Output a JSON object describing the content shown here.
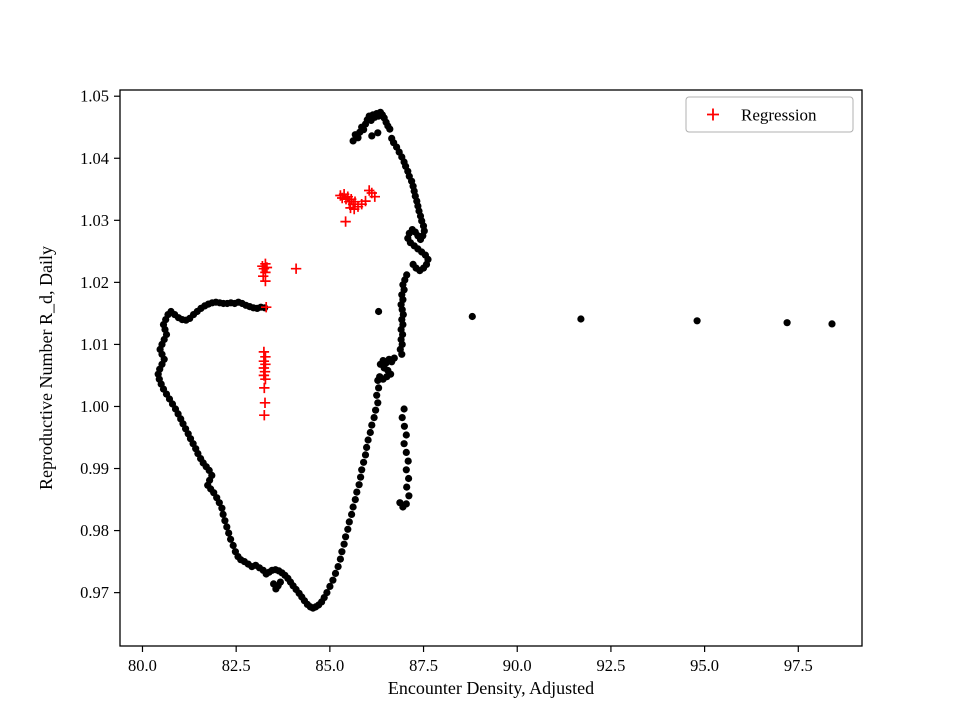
{
  "figure": {
    "background": "#ffffff",
    "accent_red": "#ff0000",
    "marker_black": "#000000"
  },
  "chart_data": {
    "type": "scatter",
    "title": "",
    "xlabel": "Encounter Density, Adjusted",
    "ylabel": "Reproductive Number R_d, Daily",
    "xlim": [
      79.4,
      99.2
    ],
    "ylim": [
      0.9614,
      1.051
    ],
    "grid": false,
    "x_ticks": [
      80.0,
      82.5,
      85.0,
      87.5,
      90.0,
      92.5,
      95.0,
      97.5
    ],
    "x_tick_labels": [
      "80.0",
      "82.5",
      "85.0",
      "87.5",
      "90.0",
      "92.5",
      "95.0",
      "97.5"
    ],
    "y_ticks": [
      0.97,
      0.98,
      0.99,
      1.0,
      1.01,
      1.02,
      1.03,
      1.04,
      1.05
    ],
    "y_tick_labels": [
      "0.97",
      "0.98",
      "0.99",
      "1.00",
      "1.01",
      "1.02",
      "1.03",
      "1.04",
      "1.05"
    ],
    "legend": {
      "position": "upper right",
      "entries": [
        "Regression"
      ]
    },
    "series": [
      {
        "marker": "circle",
        "color": "#000000",
        "points": [
          [
            85.62,
            1.0428
          ],
          [
            85.68,
            1.0438
          ],
          [
            85.75,
            1.0433
          ],
          [
            85.8,
            1.0442
          ],
          [
            85.85,
            1.045
          ],
          [
            85.9,
            1.0446
          ],
          [
            85.95,
            1.0455
          ],
          [
            86.0,
            1.0462
          ],
          [
            86.05,
            1.0468
          ],
          [
            86.1,
            1.0461
          ],
          [
            86.15,
            1.047
          ],
          [
            86.2,
            1.0466
          ],
          [
            86.25,
            1.0472
          ],
          [
            86.3,
            1.0468
          ],
          [
            86.35,
            1.0474
          ],
          [
            86.4,
            1.047
          ],
          [
            86.45,
            1.0465
          ],
          [
            86.5,
            1.0458
          ],
          [
            86.55,
            1.0452
          ],
          [
            86.6,
            1.0447
          ],
          [
            86.28,
            1.0441
          ],
          [
            86.12,
            1.0436
          ],
          [
            86.65,
            1.0432
          ],
          [
            86.7,
            1.0425
          ],
          [
            86.78,
            1.0418
          ],
          [
            86.85,
            1.041
          ],
          [
            86.92,
            1.0402
          ],
          [
            86.98,
            1.0394
          ],
          [
            87.02,
            1.0387
          ],
          [
            87.08,
            1.0379
          ],
          [
            87.12,
            1.0371
          ],
          [
            87.18,
            1.0363
          ],
          [
            87.22,
            1.0355
          ],
          [
            87.25,
            1.0347
          ],
          [
            87.28,
            1.0339
          ],
          [
            87.32,
            1.0331
          ],
          [
            87.35,
            1.0323
          ],
          [
            87.38,
            1.0315
          ],
          [
            87.42,
            1.0307
          ],
          [
            87.45,
            1.0299
          ],
          [
            87.5,
            1.0291
          ],
          [
            87.52,
            1.0283
          ],
          [
            87.48,
            1.0275
          ],
          [
            87.42,
            1.0269
          ],
          [
            87.35,
            1.0275
          ],
          [
            87.28,
            1.0281
          ],
          [
            87.2,
            1.0285
          ],
          [
            87.12,
            1.0279
          ],
          [
            87.08,
            1.0271
          ],
          [
            87.15,
            1.0264
          ],
          [
            87.25,
            1.0259
          ],
          [
            87.35,
            1.0254
          ],
          [
            87.45,
            1.0249
          ],
          [
            87.55,
            1.0244
          ],
          [
            87.62,
            1.0237
          ],
          [
            87.58,
            1.0229
          ],
          [
            87.5,
            1.0223
          ],
          [
            87.4,
            1.0219
          ],
          [
            87.3,
            1.0223
          ],
          [
            87.22,
            1.0229
          ],
          [
            87.05,
            1.0212
          ],
          [
            87.0,
            1.0204
          ],
          [
            86.95,
            1.0196
          ],
          [
            86.98,
            1.0188
          ],
          [
            86.92,
            1.018
          ],
          [
            86.95,
            1.0172
          ],
          [
            86.9,
            1.0164
          ],
          [
            86.93,
            1.0156
          ],
          [
            86.96,
            1.0148
          ],
          [
            86.92,
            1.014
          ],
          [
            86.95,
            1.0132
          ],
          [
            86.9,
            1.0124
          ],
          [
            86.94,
            1.0116
          ],
          [
            86.9,
            1.0108
          ],
          [
            86.93,
            1.01
          ],
          [
            86.88,
            1.0092
          ],
          [
            86.92,
            1.0084
          ],
          [
            86.72,
            1.0078
          ],
          [
            86.65,
            1.0072
          ],
          [
            86.58,
            1.0076
          ],
          [
            86.5,
            1.007
          ],
          [
            86.42,
            1.0074
          ],
          [
            86.35,
            1.0068
          ],
          [
            86.45,
            1.0062
          ],
          [
            86.55,
            1.0058
          ],
          [
            86.62,
            1.0052
          ],
          [
            86.52,
            1.0048
          ],
          [
            86.42,
            1.0044
          ],
          [
            86.33,
            1.0048
          ],
          [
            86.28,
            1.0042
          ],
          [
            86.98,
            0.9996
          ],
          [
            86.93,
            0.9982
          ],
          [
            86.99,
            0.9968
          ],
          [
            87.04,
            0.9954
          ],
          [
            86.98,
            0.994
          ],
          [
            87.04,
            0.9926
          ],
          [
            87.09,
            0.9912
          ],
          [
            87.04,
            0.9898
          ],
          [
            87.1,
            0.9884
          ],
          [
            87.05,
            0.987
          ],
          [
            87.11,
            0.9856
          ],
          [
            87.04,
            0.9843
          ],
          [
            86.95,
            0.9838
          ],
          [
            86.87,
            0.9845
          ],
          [
            86.3,
            1.003
          ],
          [
            86.25,
            1.0018
          ],
          [
            86.28,
            1.0006
          ],
          [
            86.22,
            0.9994
          ],
          [
            86.18,
            0.9982
          ],
          [
            86.12,
            0.997
          ],
          [
            86.08,
            0.9958
          ],
          [
            86.02,
            0.9946
          ],
          [
            85.98,
            0.9934
          ],
          [
            85.95,
            0.9922
          ],
          [
            85.9,
            0.991
          ],
          [
            85.85,
            0.9898
          ],
          [
            85.82,
            0.9886
          ],
          [
            85.78,
            0.9874
          ],
          [
            85.72,
            0.9862
          ],
          [
            85.68,
            0.985
          ],
          [
            85.62,
            0.9838
          ],
          [
            85.58,
            0.9826
          ],
          [
            85.52,
            0.9814
          ],
          [
            85.48,
            0.9802
          ],
          [
            85.42,
            0.979
          ],
          [
            85.38,
            0.9778
          ],
          [
            85.32,
            0.9766
          ],
          [
            85.28,
            0.9754
          ],
          [
            85.22,
            0.9742
          ],
          [
            85.15,
            0.9731
          ],
          [
            85.08,
            0.972
          ],
          [
            85.0,
            0.971
          ],
          [
            84.92,
            0.97
          ],
          [
            84.85,
            0.9692
          ],
          [
            84.78,
            0.9685
          ],
          [
            84.7,
            0.968
          ],
          [
            84.62,
            0.9677
          ],
          [
            84.55,
            0.9675
          ],
          [
            84.48,
            0.9677
          ],
          [
            84.4,
            0.9681
          ],
          [
            84.32,
            0.9687
          ],
          [
            84.25,
            0.9693
          ],
          [
            84.18,
            0.9699
          ],
          [
            84.1,
            0.9705
          ],
          [
            84.02,
            0.9711
          ],
          [
            83.95,
            0.9717
          ],
          [
            83.88,
            0.9723
          ],
          [
            83.8,
            0.9728
          ],
          [
            83.72,
            0.9732
          ],
          [
            83.64,
            0.9735
          ],
          [
            83.55,
            0.9737
          ],
          [
            83.46,
            0.9736
          ],
          [
            83.38,
            0.9733
          ],
          [
            83.56,
            0.9706
          ],
          [
            83.62,
            0.9711
          ],
          [
            83.5,
            0.9714
          ],
          [
            83.68,
            0.9717
          ],
          [
            83.3,
            0.973
          ],
          [
            83.22,
            0.9736
          ],
          [
            83.12,
            0.974
          ],
          [
            83.02,
            0.9744
          ],
          [
            82.92,
            0.9742
          ],
          [
            82.82,
            0.9746
          ],
          [
            82.72,
            0.975
          ],
          [
            82.62,
            0.9753
          ],
          [
            82.55,
            0.9758
          ],
          [
            82.48,
            0.9766
          ],
          [
            82.42,
            0.9776
          ],
          [
            82.35,
            0.9786
          ],
          [
            82.3,
            0.9796
          ],
          [
            82.25,
            0.9806
          ],
          [
            82.2,
            0.9816
          ],
          [
            82.15,
            0.9826
          ],
          [
            82.12,
            0.9836
          ],
          [
            82.05,
            0.9845
          ],
          [
            81.98,
            0.9853
          ],
          [
            81.9,
            0.9861
          ],
          [
            81.82,
            0.9867
          ],
          [
            81.74,
            0.9873
          ],
          [
            81.79,
            0.9881
          ],
          [
            81.85,
            0.9889
          ],
          [
            81.78,
            0.9897
          ],
          [
            81.7,
            0.9903
          ],
          [
            81.62,
            0.9909
          ],
          [
            81.55,
            0.9916
          ],
          [
            81.48,
            0.9924
          ],
          [
            81.42,
            0.9932
          ],
          [
            81.35,
            0.994
          ],
          [
            81.28,
            0.9948
          ],
          [
            81.22,
            0.9956
          ],
          [
            81.15,
            0.9964
          ],
          [
            81.08,
            0.9972
          ],
          [
            81.02,
            0.998
          ],
          [
            80.95,
            0.9988
          ],
          [
            80.88,
            0.9996
          ],
          [
            80.8,
            1.0004
          ],
          [
            80.72,
            1.0012
          ],
          [
            80.64,
            1.002
          ],
          [
            80.56,
            1.0028
          ],
          [
            80.5,
            1.0036
          ],
          [
            80.45,
            1.0044
          ],
          [
            80.42,
            1.0052
          ],
          [
            80.46,
            1.006
          ],
          [
            80.52,
            1.0068
          ],
          [
            80.58,
            1.0076
          ],
          [
            80.52,
            1.0084
          ],
          [
            80.47,
            1.0092
          ],
          [
            80.52,
            1.01
          ],
          [
            80.58,
            1.0108
          ],
          [
            80.64,
            1.0116
          ],
          [
            80.6,
            1.0124
          ],
          [
            80.56,
            1.0132
          ],
          [
            80.62,
            1.014
          ],
          [
            80.68,
            1.0148
          ],
          [
            80.76,
            1.0153
          ],
          [
            80.86,
            1.0148
          ],
          [
            80.96,
            1.0143
          ],
          [
            81.06,
            1.014
          ],
          [
            81.16,
            1.0139
          ],
          [
            81.26,
            1.0142
          ],
          [
            81.36,
            1.0148
          ],
          [
            81.46,
            1.0153
          ],
          [
            81.56,
            1.0158
          ],
          [
            81.66,
            1.0162
          ],
          [
            81.76,
            1.0165
          ],
          [
            81.86,
            1.0167
          ],
          [
            81.96,
            1.0168
          ],
          [
            82.06,
            1.0167
          ],
          [
            82.16,
            1.0166
          ],
          [
            82.26,
            1.0166
          ],
          [
            82.36,
            1.0167
          ],
          [
            82.46,
            1.0166
          ],
          [
            82.56,
            1.0168
          ],
          [
            82.66,
            1.0166
          ],
          [
            82.76,
            1.0163
          ],
          [
            82.86,
            1.0161
          ],
          [
            82.96,
            1.0159
          ],
          [
            83.06,
            1.0158
          ],
          [
            83.16,
            1.016
          ],
          [
            83.26,
            1.0159
          ],
          [
            86.3,
            1.0153
          ],
          [
            88.8,
            1.0145
          ],
          [
            91.7,
            1.0141
          ],
          [
            94.8,
            1.0138
          ],
          [
            97.2,
            1.0135
          ],
          [
            98.4,
            1.0133
          ]
        ]
      },
      {
        "name": "Regression",
        "marker": "plus",
        "color": "#ff0000",
        "points": [
          [
            85.28,
            1.034
          ],
          [
            85.33,
            1.0336
          ],
          [
            85.38,
            1.0342
          ],
          [
            85.43,
            1.0334
          ],
          [
            85.48,
            1.0338
          ],
          [
            85.52,
            1.033
          ],
          [
            85.57,
            1.0334
          ],
          [
            85.62,
            1.0326
          ],
          [
            85.67,
            1.033
          ],
          [
            85.55,
            1.032
          ],
          [
            85.65,
            1.0318
          ],
          [
            85.75,
            1.0322
          ],
          [
            85.85,
            1.0326
          ],
          [
            85.95,
            1.0331
          ],
          [
            86.05,
            1.0348
          ],
          [
            86.12,
            1.0344
          ],
          [
            86.2,
            1.0338
          ],
          [
            85.42,
            1.0298
          ],
          [
            83.2,
            1.0226
          ],
          [
            83.28,
            1.023
          ],
          [
            83.24,
            1.0222
          ],
          [
            83.32,
            1.0224
          ],
          [
            83.28,
            1.0216
          ],
          [
            83.22,
            1.021
          ],
          [
            83.28,
            1.0202
          ],
          [
            84.1,
            1.0222
          ],
          [
            83.3,
            1.016
          ],
          [
            83.24,
            1.0088
          ],
          [
            83.28,
            1.008
          ],
          [
            83.24,
            1.0073
          ],
          [
            83.28,
            1.0068
          ],
          [
            83.24,
            1.0062
          ],
          [
            83.27,
            1.0056
          ],
          [
            83.24,
            1.005
          ],
          [
            83.28,
            1.0044
          ],
          [
            83.25,
            1.003
          ],
          [
            83.27,
            1.0006
          ],
          [
            83.25,
            0.9986
          ]
        ]
      }
    ]
  }
}
